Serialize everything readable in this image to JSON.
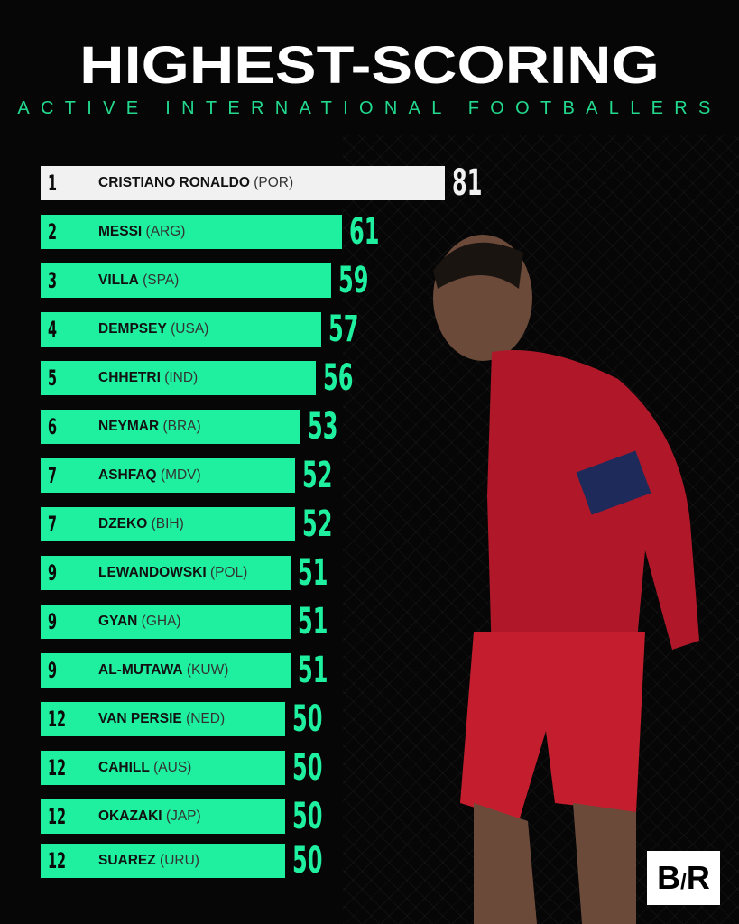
{
  "header": {
    "title": "HIGHEST-SCORING",
    "subtitle": "ACTIVE INTERNATIONAL FOOTBALLERS"
  },
  "brand": {
    "logo": "B/R"
  },
  "colors": {
    "bar": "#1ff0a0",
    "top_bar": "#f1f1f1",
    "background": "#060606",
    "subtitle": "#22d98e"
  },
  "chart_data": {
    "type": "bar",
    "orientation": "horizontal",
    "title": "HIGHEST-SCORING",
    "subtitle": "ACTIVE INTERNATIONAL FOOTBALLERS",
    "rows": [
      {
        "rank": "1",
        "name": "CRISTIANO RONALDO",
        "country": "(POR)",
        "value": 81
      },
      {
        "rank": "2",
        "name": "MESSI",
        "country": "(ARG)",
        "value": 61
      },
      {
        "rank": "3",
        "name": "VILLA",
        "country": "(SPA)",
        "value": 59
      },
      {
        "rank": "4",
        "name": "DEMPSEY",
        "country": "(USA)",
        "value": 57
      },
      {
        "rank": "5",
        "name": "CHHETRI",
        "country": "(IND)",
        "value": 56
      },
      {
        "rank": "6",
        "name": "NEYMAR",
        "country": "(BRA)",
        "value": 53
      },
      {
        "rank": "7",
        "name": "ASHFAQ",
        "country": "(MDV)",
        "value": 52
      },
      {
        "rank": "7",
        "name": "DZEKO",
        "country": "(BIH)",
        "value": 52
      },
      {
        "rank": "9",
        "name": "LEWANDOWSKI",
        "country": "(POL)",
        "value": 51
      },
      {
        "rank": "9",
        "name": "GYAN",
        "country": "(GHA)",
        "value": 51
      },
      {
        "rank": "9",
        "name": "AL-MUTAWA",
        "country": "(KUW)",
        "value": 51
      },
      {
        "rank": "12",
        "name": "VAN PERSIE",
        "country": "(NED)",
        "value": 50
      },
      {
        "rank": "12",
        "name": "CAHILL",
        "country": "(AUS)",
        "value": 50
      },
      {
        "rank": "12",
        "name": "OKAZAKI",
        "country": "(JAP)",
        "value": 50
      },
      {
        "rank": "12",
        "name": "SUAREZ",
        "country": "(URU)",
        "value": 50
      }
    ],
    "grid": false,
    "legend": "none"
  }
}
